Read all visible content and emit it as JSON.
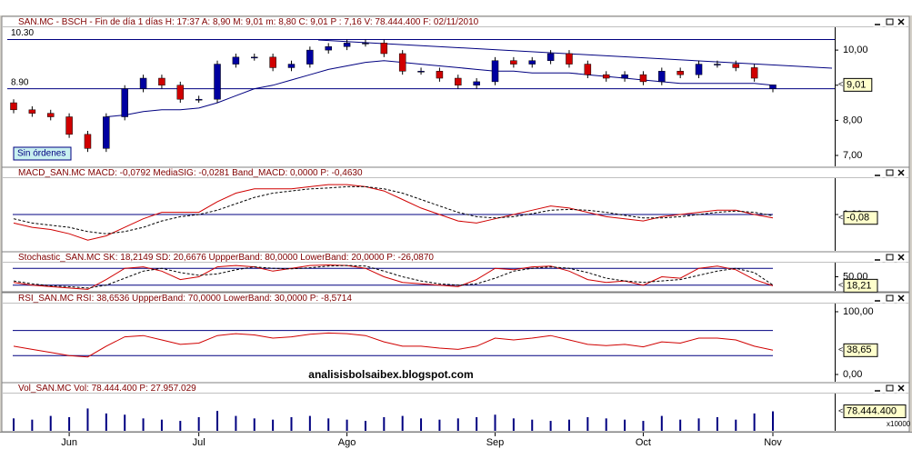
{
  "chart_data": [
    {
      "type": "candlestick",
      "title": "SAN.MC - BSCH - Fin de día 1 días H: 17:37 A: 8,90 M: 9,01 m: 8,80 C: 9,01 P : 7,16 V: 78.444.400 F: 02/11/2010",
      "open": [
        8.5,
        8.3,
        8.2,
        8.1,
        7.6,
        7.2,
        8.1,
        8.9,
        9.2,
        9.0,
        8.6,
        8.6,
        9.6,
        9.8,
        9.8,
        9.5,
        9.6,
        10.0,
        10.1,
        10.2,
        10.2,
        9.9,
        9.4,
        9.4,
        9.2,
        9.0,
        9.1,
        9.7,
        9.6,
        9.7,
        9.9,
        9.6,
        9.3,
        9.2,
        9.3,
        9.1,
        9.4,
        9.3,
        9.6,
        9.6,
        9.5,
        8.9
      ],
      "high": [
        8.6,
        8.4,
        8.3,
        8.2,
        7.7,
        8.2,
        9.0,
        9.3,
        9.3,
        9.1,
        8.7,
        9.7,
        9.9,
        9.9,
        9.9,
        9.7,
        10.1,
        10.2,
        10.3,
        10.3,
        10.3,
        10.0,
        9.5,
        9.5,
        9.3,
        9.2,
        9.8,
        9.8,
        9.8,
        10.0,
        10.0,
        9.7,
        9.4,
        9.4,
        9.4,
        9.5,
        9.5,
        9.7,
        9.7,
        9.7,
        9.6,
        9.01
      ],
      "low": [
        8.2,
        8.1,
        8.0,
        7.5,
        7.1,
        7.1,
        8.0,
        8.8,
        8.9,
        8.5,
        8.5,
        8.5,
        9.5,
        9.7,
        9.4,
        9.4,
        9.5,
        9.9,
        10.0,
        10.1,
        9.8,
        9.3,
        9.3,
        9.1,
        8.9,
        8.9,
        9.0,
        9.5,
        9.5,
        9.6,
        9.5,
        9.2,
        9.1,
        9.1,
        9.0,
        9.0,
        9.2,
        9.2,
        9.5,
        9.4,
        9.1,
        8.8
      ],
      "close": [
        8.3,
        8.2,
        8.1,
        7.6,
        7.2,
        8.1,
        8.9,
        9.2,
        9.0,
        8.6,
        8.6,
        9.6,
        9.8,
        9.8,
        9.5,
        9.6,
        10.0,
        10.1,
        10.2,
        10.2,
        9.9,
        9.4,
        9.4,
        9.2,
        9.0,
        9.1,
        9.7,
        9.6,
        9.7,
        9.9,
        9.6,
        9.3,
        9.2,
        9.3,
        9.1,
        9.4,
        9.3,
        9.6,
        9.6,
        9.5,
        9.2,
        9.01
      ],
      "up_color": "#0000a0",
      "down_color": "#d00000",
      "overlays": [
        {
          "color": "#000080",
          "values": [
            null,
            null,
            null,
            null,
            null,
            8.1,
            8.15,
            8.25,
            8.3,
            8.3,
            8.35,
            8.5,
            8.7,
            8.9,
            9.0,
            9.15,
            9.3,
            9.45,
            9.55,
            9.65,
            9.7,
            9.65,
            9.6,
            9.55,
            9.5,
            9.45,
            9.4,
            9.4,
            9.35,
            9.35,
            9.35,
            9.3,
            9.25,
            9.2,
            9.15,
            9.1,
            9.05,
            9.05,
            9.05,
            9.05,
            9.05,
            9.0
          ]
        }
      ],
      "hlines": [
        {
          "value": 10.3,
          "label": "10.30"
        },
        {
          "value": 8.9,
          "label": "8.90"
        }
      ],
      "hline_color": "#000080",
      "ylim": [
        6.69,
        10.65
      ],
      "yticks": [
        {
          "value": 10,
          "label": "10,00"
        },
        {
          "value": 9,
          "label": "9,00"
        },
        {
          "value": 8,
          "label": "8,00"
        },
        {
          "value": 7,
          "label": "7,00"
        }
      ],
      "tag": "9,01",
      "note": "Sin órdenes"
    },
    {
      "type": "line",
      "title": "MACD_SAN.MC MACD: -0,0792 MediaSIG: -0,0281 Band_MACD: 0,0000 P: -0,4630",
      "series": [
        {
          "color": "#d00000",
          "style": "solid",
          "values": [
            -0.2,
            -0.3,
            -0.35,
            -0.45,
            -0.6,
            -0.5,
            -0.3,
            -0.1,
            0.05,
            0.05,
            0.05,
            0.3,
            0.5,
            0.6,
            0.6,
            0.6,
            0.65,
            0.7,
            0.7,
            0.65,
            0.55,
            0.35,
            0.15,
            0.0,
            -0.15,
            -0.2,
            -0.1,
            0.0,
            0.1,
            0.2,
            0.15,
            0.05,
            -0.05,
            -0.1,
            -0.15,
            -0.05,
            0.0,
            0.05,
            0.1,
            0.1,
            0.0,
            -0.0792
          ]
        },
        {
          "color": "#000000",
          "style": "dashed",
          "values": [
            -0.1,
            -0.2,
            -0.25,
            -0.3,
            -0.4,
            -0.45,
            -0.4,
            -0.3,
            -0.15,
            -0.05,
            0.0,
            0.1,
            0.25,
            0.4,
            0.5,
            0.55,
            0.6,
            0.62,
            0.65,
            0.65,
            0.6,
            0.5,
            0.35,
            0.2,
            0.05,
            -0.05,
            -0.08,
            -0.05,
            0.02,
            0.1,
            0.12,
            0.1,
            0.05,
            -0.02,
            -0.08,
            -0.08,
            -0.05,
            0.0,
            0.05,
            0.08,
            0.05,
            -0.0281
          ]
        }
      ],
      "bands": [
        0
      ],
      "band_color": "#000080",
      "ylim": [
        -0.85,
        0.85
      ],
      "yticks": [
        {
          "value": 0,
          "label": "0,00"
        }
      ],
      "tag": "-0,08"
    },
    {
      "type": "line",
      "title": "Stochastic_SAN.MC SK: 18,2149 SD: 20,6676 UppperBand: 80,0000 LowerBand: 20,0000 P: -26,0870",
      "series": [
        {
          "color": "#d00000",
          "style": "solid",
          "values": [
            30,
            20,
            15,
            10,
            5,
            40,
            80,
            85,
            70,
            40,
            50,
            85,
            90,
            85,
            70,
            80,
            90,
            92,
            90,
            80,
            50,
            30,
            25,
            20,
            15,
            40,
            80,
            75,
            85,
            88,
            70,
            40,
            30,
            35,
            20,
            50,
            45,
            80,
            88,
            75,
            40,
            18.2149
          ]
        },
        {
          "color": "#000000",
          "style": "dashed",
          "values": [
            35,
            25,
            18,
            15,
            10,
            20,
            45,
            70,
            80,
            65,
            55,
            60,
            75,
            85,
            80,
            78,
            82,
            88,
            90,
            88,
            70,
            50,
            35,
            25,
            20,
            25,
            45,
            70,
            80,
            85,
            80,
            65,
            45,
            35,
            30,
            35,
            40,
            55,
            70,
            80,
            65,
            20.6676
          ]
        }
      ],
      "bands": [
        80,
        20
      ],
      "band_color": "#000080",
      "ylim": [
        0,
        100
      ],
      "yticks": [
        {
          "value": 50,
          "label": "50,00"
        }
      ],
      "tag": "18,21"
    },
    {
      "type": "line",
      "title": "RSI_SAN.MC RSI: 38,6536 UppperBand: 70,0000 LowerBand: 30,0000 P: -8,5714",
      "series": [
        {
          "color": "#d00000",
          "style": "solid",
          "values": [
            45,
            40,
            35,
            30,
            28,
            45,
            60,
            62,
            55,
            48,
            50,
            62,
            65,
            63,
            58,
            60,
            64,
            66,
            65,
            62,
            52,
            45,
            45,
            42,
            40,
            45,
            58,
            55,
            58,
            62,
            55,
            48,
            46,
            48,
            44,
            52,
            50,
            58,
            58,
            55,
            45,
            38.6536
          ]
        }
      ],
      "bands": [
        70,
        30
      ],
      "band_color": "#000080",
      "ylim": [
        -11.6,
        113
      ],
      "yticks": [
        {
          "value": 100,
          "label": "100,00"
        },
        {
          "value": 0,
          "label": "0,00"
        }
      ],
      "tag": "38,65",
      "watermark": "analisisbolsaibex.blogspot.com"
    },
    {
      "type": "bar",
      "title": "Vol_SAN.MC Vol: 78.444.400 P: 27.957.029",
      "color": "#000080",
      "values": [
        50000000,
        45000000,
        60000000,
        55000000,
        90000000,
        70000000,
        65000000,
        50000000,
        45000000,
        40000000,
        55000000,
        80000000,
        60000000,
        50000000,
        45000000,
        55000000,
        60000000,
        50000000,
        45000000,
        40000000,
        55000000,
        60000000,
        50000000,
        45000000,
        50000000,
        55000000,
        65000000,
        50000000,
        45000000,
        40000000,
        45000000,
        55000000,
        50000000,
        45000000,
        40000000,
        60000000,
        45000000,
        50000000,
        55000000,
        45000000,
        70000000,
        78444400
      ],
      "ylim": [
        0,
        150000000
      ],
      "tag": "78.444.400",
      "scale_note": "x10000",
      "categories": [
        null,
        null,
        null,
        "Jun",
        null,
        null,
        null,
        null,
        null,
        null,
        "Jul",
        null,
        null,
        null,
        null,
        null,
        null,
        null,
        "Ago",
        null,
        null,
        null,
        null,
        null,
        null,
        null,
        "Sep",
        null,
        null,
        null,
        null,
        null,
        null,
        null,
        "Oct",
        null,
        null,
        null,
        null,
        null,
        null,
        "Nov"
      ]
    }
  ]
}
